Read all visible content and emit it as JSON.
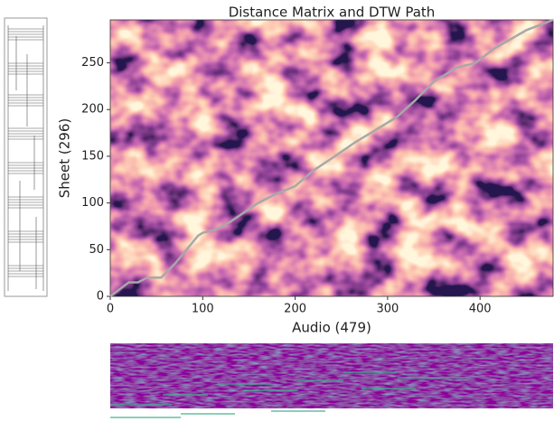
{
  "chart_data": {
    "type": "line",
    "title": "Distance Matrix and DTW Path",
    "x_label": "Audio (479)",
    "y_label": "Sheet (296)",
    "x": [
      0,
      20,
      30,
      40,
      55,
      70,
      95,
      100,
      115,
      130,
      160,
      180,
      200,
      220,
      240,
      265,
      290,
      310,
      330,
      350,
      375,
      395,
      415,
      450,
      479
    ],
    "values": [
      0,
      15,
      15,
      20,
      20,
      35,
      65,
      68,
      72,
      80,
      100,
      110,
      118,
      135,
      148,
      165,
      180,
      192,
      210,
      230,
      245,
      250,
      265,
      285,
      296
    ],
    "color": "#a8a8a8",
    "xlim": [
      0,
      479
    ],
    "ylim": [
      0,
      296
    ],
    "xticks": [
      0,
      100,
      200,
      300,
      400
    ],
    "yticks": [
      0,
      50,
      100,
      150,
      200,
      250
    ]
  }
}
